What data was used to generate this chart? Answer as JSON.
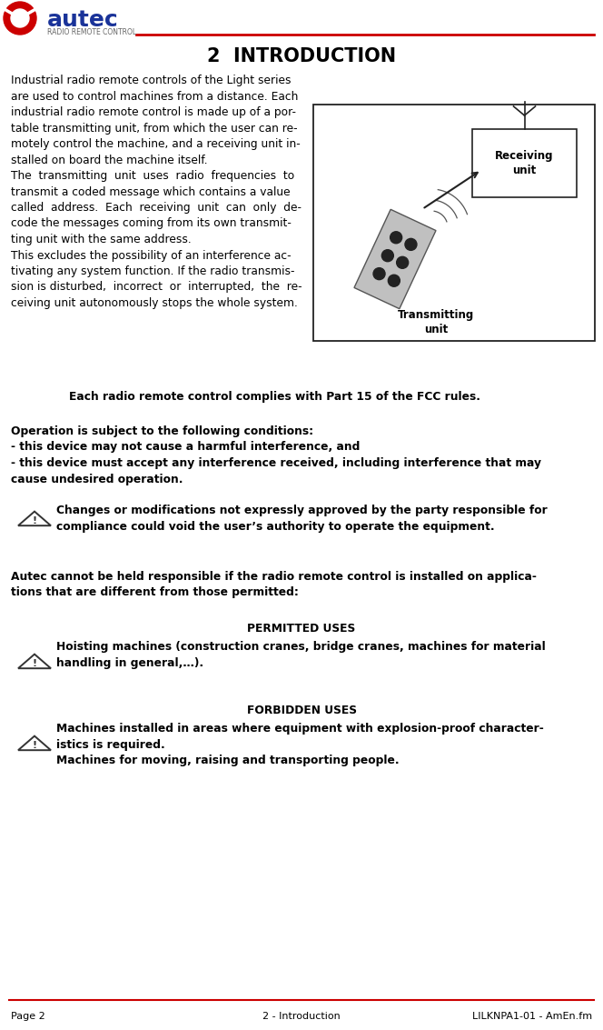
{
  "bg_color": "#ffffff",
  "header_line_color": "#cc0000",
  "footer_line_color": "#cc0000",
  "logo_text": "autec",
  "logo_subtext": "RADIO REMOTE CONTROL",
  "logo_blue": "#1a3399",
  "logo_red": "#cc0000",
  "title": "2  INTRODUCTION",
  "title_fontsize": 15,
  "body_left_col_text": "Industrial radio remote controls of the Light series\nare used to control machines from a distance. Each\nindustrial radio remote control is made up of a por-\ntable transmitting unit, from which the user can re-\nmotely control the machine, and a receiving unit in-\nstalled on board the machine itself.\nThe  transmitting  unit  uses  radio  frequencies  to\ntransmit a coded message which contains a value\ncalled  address.  Each  receiving  unit  can  only  de-\ncode the messages coming from its own transmit-\nting unit with the same address.\nThis excludes the possibility of an interference ac-\ntivating any system function. If the radio transmis-\nsion is disturbed,  incorrect  or  interrupted,  the  re-\nceiving unit autonomously stops the whole system.",
  "body_fontsize": 8.8,
  "fcc_text": "Each radio remote control complies with Part 15 of the FCC rules.",
  "fcc_fontsize": 8.8,
  "operation_text": "Operation is subject to the following conditions:\n- this device may not cause a harmful interference, and\n- this device must accept any interference received, including interference that may\ncause undesired operation.",
  "operation_fontsize": 8.8,
  "warning1_text": "Changes or modifications not expressly approved by the party responsible for\ncompliance could void the user’s authority to operate the equipment.",
  "warning_fontsize": 8.8,
  "autec_text": "Autec cannot be held responsible if the radio remote control is installed on applica-\ntions that are different from those permitted:",
  "autec_fontsize": 8.8,
  "permitted_title": "PERMITTED USES",
  "permitted_body": "Hoisting machines (construction cranes, bridge cranes, machines for material\nhandling in general,…).",
  "forbidden_title": "FORBIDDEN USES",
  "forbidden_body": "Machines installed in areas where equipment with explosion-proof character-\nistics is required.\nMachines for moving, raising and transporting people.",
  "section_fontsize": 8.8,
  "footer_left": "Page 2",
  "footer_center": "2 - Introduction",
  "footer_right": "LILKNPA1-01 - AmEn.fm",
  "footer_fontsize": 8.0,
  "receiving_label": "Receiving\nunit",
  "transmitting_label": "Transmitting\nunit"
}
